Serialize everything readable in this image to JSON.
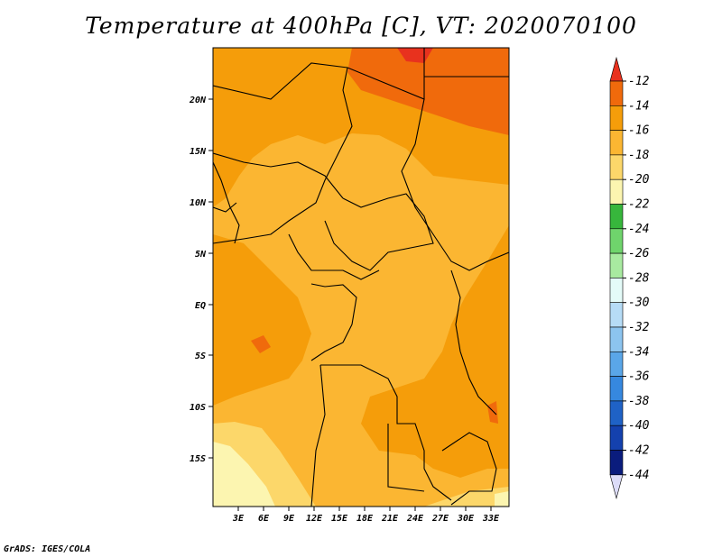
{
  "title": "Temperature at 400hPa [C], VT: 2020070100",
  "credit": "GrADS: IGES/COLA",
  "map": {
    "lat_labels": [
      "20N",
      "15N",
      "10N",
      "5N",
      "EQ",
      "5S",
      "10S",
      "15S"
    ],
    "lon_labels": [
      "3E",
      "6E",
      "9E",
      "12E",
      "15E",
      "18E",
      "21E",
      "24E",
      "27E",
      "30E",
      "33E"
    ]
  },
  "colorbar": {
    "labels": [
      "-12",
      "-14",
      "-16",
      "-18",
      "-20",
      "-22",
      "-24",
      "-26",
      "-28",
      "-30",
      "-32",
      "-34",
      "-36",
      "-38",
      "-40",
      "-42",
      "-44"
    ],
    "colors": [
      "#e8321e",
      "#f06a0c",
      "#f59d0a",
      "#fbb632",
      "#fcd76a",
      "#fcf5b0",
      "#37b63c",
      "#6fd46c",
      "#a8eaa0",
      "#e4fbf8",
      "#b6dcf6",
      "#8cc4ef",
      "#5aa6e8",
      "#3688df",
      "#1f62c6",
      "#1441ae",
      "#0a1c7d",
      "#dcdcf8"
    ]
  }
}
